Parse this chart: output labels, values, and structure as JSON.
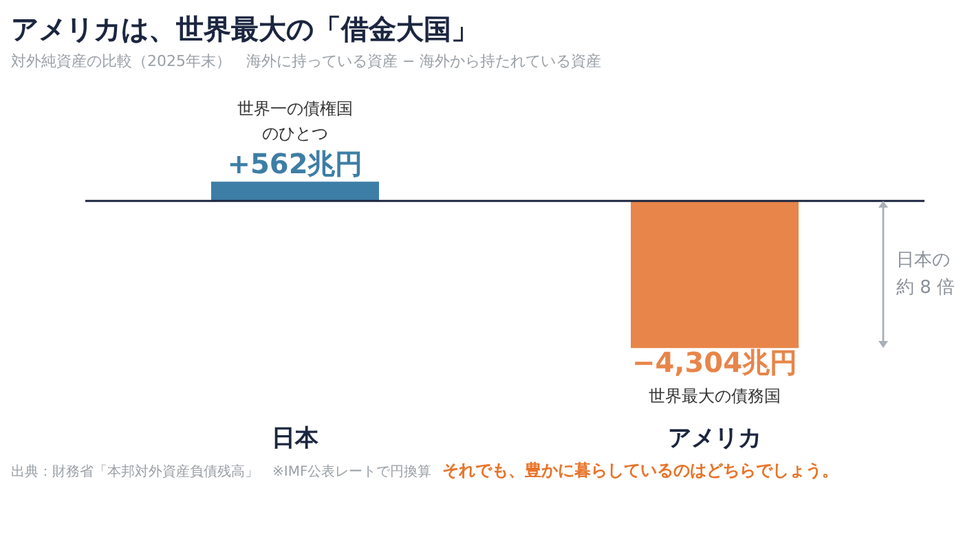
{
  "chart_data": {
    "type": "bar",
    "title": "アメリカは、世界最大の「借金大国」",
    "subtitle": "対外純資産の比較（2025年末）　海外に持っている資産 − 海外から持たれている資産",
    "categories": [
      "日本",
      "アメリカ"
    ],
    "values": [
      562,
      -4304
    ],
    "colors": [
      "#3d7ea6",
      "#e8854a"
    ],
    "value_labels": [
      "+562兆円",
      "−4,304兆円"
    ],
    "annotations": [
      "世界一の債権国のひとつ",
      "世界最大の債務国",
      "日本の約 8 倍",
      "出典：財務省「本邦対外資産負債残高」　※IMF公表レートで円換算",
      "それでも、豊かに暮らしているのはどちらでしょう。"
    ]
  }
}
